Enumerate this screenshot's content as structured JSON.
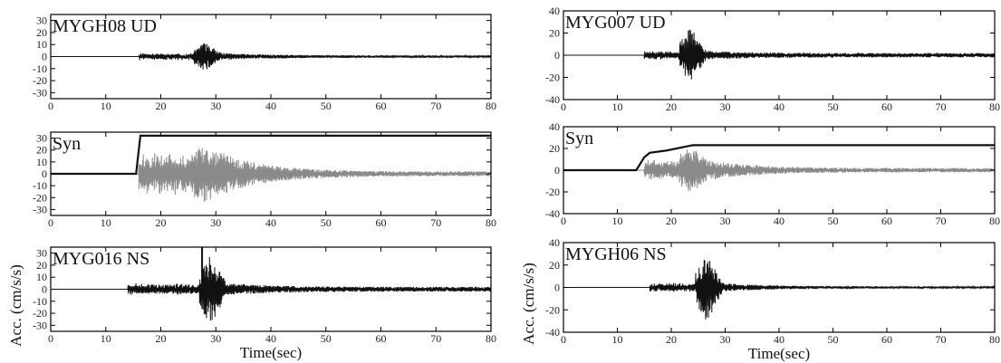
{
  "colors": {
    "trace": "#111111",
    "synthetic": "#8a8a8a",
    "frame": "#000000"
  },
  "chart_data": [
    {
      "type": "line",
      "station_label": "MYGH08 UD",
      "xlim": [
        0,
        80
      ],
      "ylim": [
        -35,
        35
      ],
      "xticks": [
        0,
        10,
        20,
        30,
        40,
        50,
        60,
        70,
        80
      ],
      "yticks": [
        -30,
        -20,
        -10,
        0,
        10,
        20,
        30
      ],
      "xlabel": "",
      "ylabel": "",
      "series": [
        {
          "kind": "waveform",
          "color": "trace",
          "onset": 16,
          "peak_time": 28,
          "peak_amp": 12,
          "pre_amp": 3,
          "coda_amp": 1
        }
      ]
    },
    {
      "type": "line",
      "station_label": "Syn",
      "xlim": [
        0,
        80
      ],
      "ylim": [
        -35,
        35
      ],
      "xticks": [
        0,
        10,
        20,
        30,
        40,
        50,
        60,
        70,
        80
      ],
      "yticks": [
        -30,
        -20,
        -10,
        0,
        10,
        20,
        30
      ],
      "xlabel": "",
      "ylabel": "",
      "series": [
        {
          "kind": "waveform",
          "color": "synthetic",
          "onset": 16,
          "peak_time": 28,
          "peak_amp": 24,
          "pre_amp": 18,
          "coda_amp": 2
        },
        {
          "kind": "step",
          "color": "trace",
          "x": [
            0,
            15.5,
            16.3,
            80
          ],
          "y": [
            0,
            0,
            32,
            32
          ]
        }
      ]
    },
    {
      "type": "line",
      "station_label": "MYG016 NS",
      "xlim": [
        0,
        80
      ],
      "ylim": [
        -35,
        35
      ],
      "xticks": [
        0,
        10,
        20,
        30,
        40,
        50,
        60,
        70,
        80
      ],
      "yticks": [
        -30,
        -20,
        -10,
        0,
        10,
        20,
        30
      ],
      "xlabel": "Time(sec)",
      "ylabel": "Acc. (cm/s/s)",
      "series": [
        {
          "kind": "waveform",
          "color": "trace",
          "onset": 14,
          "peak_time": 29,
          "peak_amp": 30,
          "pre_amp": 5,
          "coda_amp": 2
        },
        {
          "kind": "spike",
          "color": "trace",
          "x": 27.5,
          "y": [
            -5,
            35
          ]
        }
      ]
    },
    {
      "type": "line",
      "station_label": "MYG007 UD",
      "xlim": [
        0,
        80
      ],
      "ylim": [
        -40,
        40
      ],
      "xticks": [
        0,
        10,
        20,
        30,
        40,
        50,
        60,
        70,
        80
      ],
      "yticks": [
        -40,
        -20,
        0,
        20,
        40
      ],
      "xlabel": "",
      "ylabel": "",
      "series": [
        {
          "kind": "waveform",
          "color": "trace",
          "onset": 15,
          "peak_time": 23.5,
          "peak_amp": 26,
          "pre_amp": 4,
          "coda_amp": 2
        }
      ]
    },
    {
      "type": "line",
      "station_label": "Syn",
      "xlim": [
        0,
        80
      ],
      "ylim": [
        -40,
        40
      ],
      "xticks": [
        0,
        10,
        20,
        30,
        40,
        50,
        60,
        70,
        80
      ],
      "yticks": [
        -40,
        -20,
        0,
        20,
        40
      ],
      "xlabel": "",
      "ylabel": "",
      "series": [
        {
          "kind": "waveform",
          "color": "synthetic",
          "onset": 15,
          "peak_time": 23.5,
          "peak_amp": 22,
          "pre_amp": 10,
          "coda_amp": 2
        },
        {
          "kind": "step",
          "color": "trace",
          "x": [
            0,
            13.5,
            14.5,
            15,
            16,
            19,
            21,
            23,
            24,
            80
          ],
          "y": [
            0,
            0,
            8,
            12,
            16,
            18,
            20,
            22,
            23,
            23
          ]
        }
      ]
    },
    {
      "type": "line",
      "station_label": "MYGH06 NS",
      "xlim": [
        0,
        80
      ],
      "ylim": [
        -40,
        40
      ],
      "xticks": [
        0,
        10,
        20,
        30,
        40,
        50,
        60,
        70,
        80
      ],
      "yticks": [
        -40,
        -20,
        0,
        20,
        40
      ],
      "xlabel": "Time(sec)",
      "ylabel": "Acc. (cm/s/s)",
      "series": [
        {
          "kind": "waveform",
          "color": "trace",
          "onset": 16,
          "peak_time": 26.5,
          "peak_amp": 32,
          "pre_amp": 4,
          "coda_amp": 1
        }
      ]
    }
  ]
}
